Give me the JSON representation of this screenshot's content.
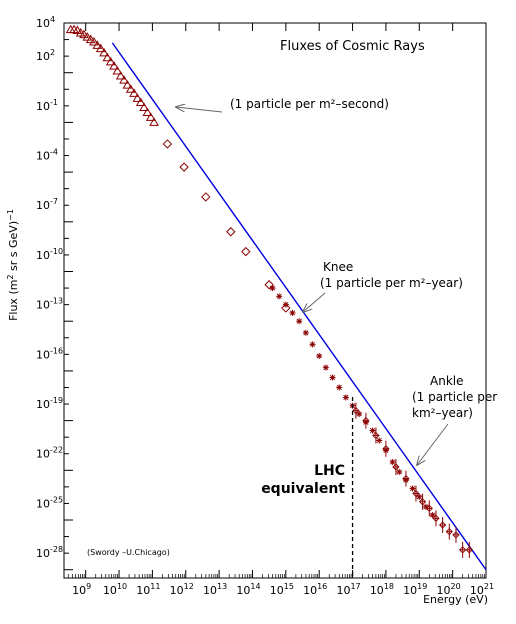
{
  "chart_data": {
    "type": "scatter",
    "title": "Fluxes of Cosmic Rays",
    "xlabel": "Energy (eV)",
    "ylabel_main": "Flux (m",
    "ylabel_sup": "2",
    "ylabel_mid": " sr s GeV)",
    "ylabel_sup2": "−1",
    "xscale": "log",
    "yscale": "log",
    "xlim_log10": [
      8.35,
      21
    ],
    "ylim_log10": [
      -29.5,
      4
    ],
    "x_ticks": [
      {
        "base": "10",
        "exp": "9",
        "v": 9
      },
      {
        "base": "10",
        "exp": "10",
        "v": 10
      },
      {
        "base": "10",
        "exp": "11",
        "v": 11
      },
      {
        "base": "10",
        "exp": "12",
        "v": 12
      },
      {
        "base": "10",
        "exp": "13",
        "v": 13
      },
      {
        "base": "10",
        "exp": "14",
        "v": 14
      },
      {
        "base": "10",
        "exp": "15",
        "v": 15
      },
      {
        "base": "10",
        "exp": "16",
        "v": 16
      },
      {
        "base": "10",
        "exp": "17",
        "v": 17
      },
      {
        "base": "10",
        "exp": "18",
        "v": 18
      },
      {
        "base": "10",
        "exp": "19",
        "v": 19
      },
      {
        "base": "10",
        "exp": "20",
        "v": 20
      },
      {
        "base": "10",
        "exp": "21",
        "v": 21
      }
    ],
    "y_ticks": [
      {
        "base": "10",
        "exp": "4",
        "v": 4
      },
      {
        "base": "10",
        "exp": "2",
        "v": 2
      },
      {
        "base": "10",
        "exp": "-1",
        "v": -1
      },
      {
        "base": "10",
        "exp": "-4",
        "v": -4
      },
      {
        "base": "10",
        "exp": "-7",
        "v": -7
      },
      {
        "base": "10",
        "exp": "-10",
        "v": -10
      },
      {
        "base": "10",
        "exp": "-13",
        "v": -13
      },
      {
        "base": "10",
        "exp": "-16",
        "v": -16
      },
      {
        "base": "10",
        "exp": "-19",
        "v": -19
      },
      {
        "base": "10",
        "exp": "-22",
        "v": -22
      },
      {
        "base": "10",
        "exp": "-25",
        "v": -25
      },
      {
        "base": "10",
        "exp": "-28",
        "v": -28
      }
    ],
    "fit_line_log10": [
      [
        9.8,
        2.8
      ],
      [
        21,
        -29
      ]
    ],
    "series": [
      {
        "marker": "triangle",
        "points_log10": [
          [
            8.55,
            3.6
          ],
          [
            8.65,
            3.6
          ],
          [
            8.75,
            3.55
          ],
          [
            8.85,
            3.4
          ],
          [
            8.95,
            3.3
          ],
          [
            9.05,
            3.15
          ],
          [
            9.15,
            3.0
          ],
          [
            9.25,
            2.85
          ],
          [
            9.35,
            2.65
          ],
          [
            9.45,
            2.45
          ],
          [
            9.55,
            2.2
          ],
          [
            9.65,
            1.9
          ],
          [
            9.75,
            1.65
          ],
          [
            9.85,
            1.4
          ],
          [
            9.95,
            1.1
          ],
          [
            10.05,
            0.8
          ],
          [
            10.15,
            0.55
          ],
          [
            10.25,
            0.25
          ],
          [
            10.35,
            0.0
          ],
          [
            10.45,
            -0.25
          ],
          [
            10.55,
            -0.55
          ],
          [
            10.65,
            -0.8
          ],
          [
            10.75,
            -1.1
          ],
          [
            10.85,
            -1.4
          ],
          [
            10.95,
            -1.7
          ],
          [
            11.05,
            -2.0
          ]
        ]
      },
      {
        "marker": "diamond",
        "points_log10": [
          [
            11.45,
            -3.3
          ],
          [
            11.95,
            -4.7
          ],
          [
            12.6,
            -6.5
          ],
          [
            13.35,
            -8.6
          ],
          [
            13.8,
            -9.8
          ],
          [
            14.5,
            -11.8
          ],
          [
            15.0,
            -13.2
          ]
        ]
      },
      {
        "marker": "star",
        "points_log10": [
          [
            14.6,
            -12.0
          ],
          [
            14.8,
            -12.5
          ],
          [
            15.0,
            -13.0
          ],
          [
            15.2,
            -13.5
          ],
          [
            15.4,
            -14.0
          ],
          [
            15.6,
            -14.7
          ],
          [
            15.8,
            -15.4
          ],
          [
            16.0,
            -16.1
          ],
          [
            16.2,
            -16.8
          ],
          [
            16.4,
            -17.4
          ],
          [
            16.6,
            -18.0
          ],
          [
            16.8,
            -18.6
          ],
          [
            17.0,
            -19.1
          ],
          [
            17.2,
            -19.6
          ],
          [
            17.4,
            -20.1
          ],
          [
            17.6,
            -20.6
          ],
          [
            17.8,
            -21.2
          ],
          [
            18.0,
            -21.8
          ],
          [
            18.2,
            -22.5
          ],
          [
            18.4,
            -23.1
          ],
          [
            18.6,
            -23.6
          ],
          [
            18.8,
            -24.1
          ],
          [
            19.0,
            -24.6
          ],
          [
            19.2,
            -25.2
          ],
          [
            19.4,
            -25.7
          ]
        ]
      },
      {
        "marker": "errbar",
        "points_log10": [
          [
            17.1,
            -19.4
          ],
          [
            17.4,
            -20.0
          ],
          [
            17.7,
            -20.9
          ],
          [
            18.0,
            -21.7
          ],
          [
            18.3,
            -22.8
          ],
          [
            18.6,
            -23.5
          ],
          [
            18.9,
            -24.4
          ],
          [
            19.1,
            -24.9
          ],
          [
            19.3,
            -25.3
          ],
          [
            19.5,
            -25.9
          ],
          [
            19.7,
            -26.3
          ],
          [
            19.9,
            -26.7
          ],
          [
            20.1,
            -26.9
          ],
          [
            20.3,
            -27.8
          ],
          [
            20.5,
            -27.8
          ]
        ]
      }
    ],
    "lhc_marker_x_log10": 17
  },
  "annotations": {
    "per_second": "(1 particle per m²–second)",
    "knee_title": "Knee",
    "knee_sub": "(1 particle per m²–year)",
    "ankle_title": "Ankle",
    "ankle_sub1": "(1 particle per",
    "ankle_sub2": "km²–year)",
    "lhc_line1": "LHC",
    "lhc_line2": "equivalent",
    "credit": "(Swordy –U.Chicago)"
  },
  "colors": {
    "fit_line": "#0000e0",
    "markers": "#8b0000",
    "frame": "#000000",
    "arrow": "#666666"
  }
}
